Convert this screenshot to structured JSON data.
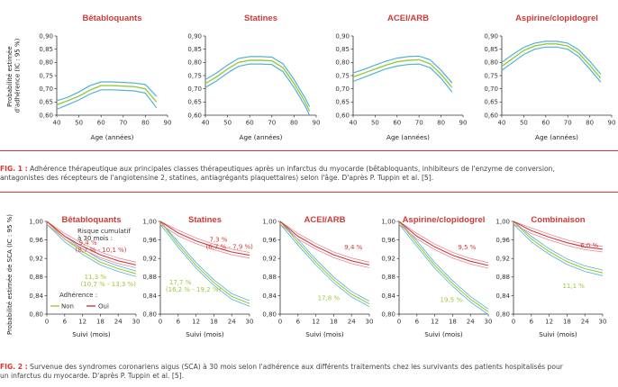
{
  "figure1": {
    "ylabel_line1": "Probabilité estimée",
    "ylabel_line2": "d'adhérence (IC : 95 %)",
    "xlabel": "Age (années)",
    "caption_label": "FIG. 1 :",
    "caption_line1": " Adhérence thérapeutique aux principales classes thérapeutiques après un infarctus du myocarde (bêtabloquants, inhibiteurs de l'enzyme de conversion,",
    "caption_line2": "antagonistes des récepteurs de l'angiotensine 2, statines, antiagrégants plaquettaires) selon l'âge. D'après P. Tuppin et al. [5]."
  },
  "figure2": {
    "ylabel": "Probabilité estimée de SCA (IC : 95 %)",
    "xlabel": "Suivi (mois)",
    "legend_title": "Adhérence :",
    "legend_non": "Non",
    "legend_oui": "Oui",
    "risk_label_line1": "Risque cumulatif",
    "risk_label_line2": "à 30 mois :",
    "caption_label": "FIG. 2 :",
    "caption_line1": " Survenue des syndromes coronariens aigus (SCA) à 30 mois selon l'adhérence aux différents traitements chez les survivants des patients hospitalisés pour",
    "caption_line2": "un infarctus du myocarde. D'après P. Tuppin et al. [5]."
  },
  "colors": {
    "accent": "#d23a36",
    "fig1_mid": "#9cc93a",
    "fig1_band": "#4fb3d6",
    "non_adherent": "#9cc93a",
    "non_adherent_band": "#4fb3d6",
    "adherent": "#d23a36",
    "adherent_band": "#e58a9a"
  },
  "chart_data": [
    {
      "type": "line",
      "title": "Bêtabloquants",
      "xlabel": "Age (années)",
      "ylabel": "Probabilité estimée d'adhérence (IC : 95 %)",
      "xlim": [
        40,
        90
      ],
      "ylim": [
        0.6,
        0.9
      ],
      "xticks": [
        "40",
        "50",
        "60",
        "70",
        "80",
        "90"
      ],
      "yticks": [
        "0,60",
        "0,65",
        "0,70",
        "0,75",
        "0,80",
        "0,85",
        "0,90"
      ],
      "x": [
        40,
        45,
        50,
        55,
        60,
        65,
        70,
        75,
        80,
        85
      ],
      "series": [
        {
          "values": [
            0.64,
            0.655,
            0.672,
            0.695,
            0.712,
            0.712,
            0.71,
            0.708,
            0.7,
            0.65
          ]
        },
        {
          "values": [
            0.655,
            0.668,
            0.688,
            0.712,
            0.726,
            0.726,
            0.724,
            0.722,
            0.716,
            0.672
          ]
        },
        {
          "values": [
            0.622,
            0.64,
            0.658,
            0.68,
            0.696,
            0.696,
            0.694,
            0.692,
            0.684,
            0.628
          ]
        }
      ]
    },
    {
      "type": "line",
      "title": "Statines",
      "xlabel": "Age (années)",
      "ylabel": "",
      "xlim": [
        40,
        90
      ],
      "ylim": [
        0.6,
        0.9
      ],
      "xticks": [
        "40",
        "50",
        "60",
        "70",
        "80",
        "90"
      ],
      "yticks": [
        "0,60",
        "0,65",
        "0,70",
        "0,75",
        "0,80",
        "0,85",
        "0,90"
      ],
      "x": [
        40,
        45,
        50,
        55,
        60,
        65,
        70,
        75,
        80,
        85,
        87
      ],
      "series": [
        {
          "values": [
            0.72,
            0.745,
            0.775,
            0.8,
            0.808,
            0.808,
            0.806,
            0.78,
            0.72,
            0.65,
            0.615
          ]
        },
        {
          "values": [
            0.735,
            0.76,
            0.79,
            0.815,
            0.822,
            0.822,
            0.82,
            0.795,
            0.735,
            0.665,
            0.632
          ]
        },
        {
          "values": [
            0.705,
            0.73,
            0.76,
            0.785,
            0.794,
            0.794,
            0.792,
            0.765,
            0.705,
            0.635,
            0.6
          ]
        }
      ]
    },
    {
      "type": "line",
      "title": "ACEI/ARB",
      "xlabel": "Age (années)",
      "ylabel": "",
      "xlim": [
        40,
        90
      ],
      "ylim": [
        0.6,
        0.9
      ],
      "xticks": [
        "40",
        "50",
        "60",
        "70",
        "80",
        "90"
      ],
      "yticks": [
        "0,60",
        "0,65",
        "0,70",
        "0,75",
        "0,80",
        "0,85",
        "0,90"
      ],
      "x": [
        40,
        45,
        50,
        55,
        60,
        65,
        70,
        75,
        80,
        85
      ],
      "series": [
        {
          "values": [
            0.745,
            0.76,
            0.775,
            0.79,
            0.802,
            0.808,
            0.81,
            0.795,
            0.755,
            0.705
          ]
        },
        {
          "values": [
            0.76,
            0.774,
            0.79,
            0.805,
            0.816,
            0.822,
            0.824,
            0.81,
            0.77,
            0.722
          ]
        },
        {
          "values": [
            0.728,
            0.744,
            0.76,
            0.776,
            0.786,
            0.792,
            0.794,
            0.78,
            0.74,
            0.688
          ]
        }
      ]
    },
    {
      "type": "line",
      "title": "Aspirine/clopidogrel",
      "xlabel": "Age (années)",
      "ylabel": "",
      "xlim": [
        40,
        90
      ],
      "ylim": [
        0.6,
        0.9
      ],
      "xticks": [
        "40",
        "50",
        "60",
        "70",
        "80",
        "90"
      ],
      "yticks": [
        "0,60",
        "0,65",
        "0,70",
        "0,75",
        "0,80",
        "0,85",
        "0,90"
      ],
      "x": [
        40,
        45,
        50,
        55,
        60,
        65,
        70,
        75,
        80,
        85
      ],
      "series": [
        {
          "values": [
            0.785,
            0.815,
            0.845,
            0.862,
            0.87,
            0.87,
            0.862,
            0.835,
            0.79,
            0.74
          ]
        },
        {
          "values": [
            0.8,
            0.83,
            0.857,
            0.873,
            0.88,
            0.88,
            0.873,
            0.848,
            0.805,
            0.755
          ]
        },
        {
          "values": [
            0.77,
            0.8,
            0.83,
            0.85,
            0.858,
            0.858,
            0.85,
            0.822,
            0.775,
            0.725
          ]
        }
      ]
    },
    {
      "type": "line",
      "title": "Bêtabloquants",
      "xlabel": "Suivi (mois)",
      "ylabel": "Probabilité estimée de SCA (IC : 95 %)",
      "xlim": [
        0,
        30
      ],
      "ylim": [
        0.8,
        1.0
      ],
      "xticks": [
        "0",
        "6",
        "12",
        "18",
        "24",
        "30"
      ],
      "yticks": [
        "0,80",
        "0,84",
        "0,88",
        "0,92",
        "0,96",
        "1,00"
      ],
      "x": [
        0,
        6,
        12,
        18,
        24,
        30
      ],
      "series": [
        {
          "name": "Oui",
          "values": [
            1.0,
            0.968,
            0.946,
            0.928,
            0.915,
            0.906
          ],
          "annotation_line1": "9,4 %",
          "annotation_line2": "(8,7 % - 10,1 %)"
        },
        {
          "name": "Non",
          "values": [
            1.0,
            0.962,
            0.935,
            0.912,
            0.898,
            0.887
          ],
          "annotation_line1": "11,3 %",
          "annotation_line2": "(10,7 % - 13,3 %)"
        }
      ]
    },
    {
      "type": "line",
      "title": "Statines",
      "xlabel": "Suivi (mois)",
      "ylabel": "",
      "xlim": [
        0,
        30
      ],
      "ylim": [
        0.8,
        1.0
      ],
      "xticks": [
        "0",
        "6",
        "12",
        "18",
        "24",
        "30"
      ],
      "yticks": [
        "0,80",
        "0,84",
        "0,88",
        "0,92",
        "0,96",
        "1,00"
      ],
      "x": [
        0,
        6,
        12,
        18,
        24,
        30
      ],
      "series": [
        {
          "name": "Oui",
          "values": [
            1.0,
            0.975,
            0.958,
            0.945,
            0.934,
            0.927
          ],
          "annotation_line1": "7,3 %",
          "annotation_line2": "(6,7 % - 7,9 %)"
        },
        {
          "name": "Non",
          "values": [
            1.0,
            0.95,
            0.905,
            0.868,
            0.838,
            0.823
          ],
          "annotation_line1": "17,7 %",
          "annotation_line2": "(16,2 % - 19,2 %)"
        }
      ]
    },
    {
      "type": "line",
      "title": "ACEI/ARB",
      "xlabel": "Suivi (mois)",
      "ylabel": "",
      "xlim": [
        0,
        30
      ],
      "ylim": [
        0.8,
        1.0
      ],
      "xticks": [
        "0",
        "6",
        "12",
        "18",
        "24",
        "30"
      ],
      "yticks": [
        "0,80",
        "0,84",
        "0,88",
        "0,92",
        "0,96",
        "1,00"
      ],
      "x": [
        0,
        6,
        12,
        18,
        24,
        30
      ],
      "series": [
        {
          "name": "Oui",
          "values": [
            1.0,
            0.968,
            0.946,
            0.928,
            0.915,
            0.906
          ],
          "annotation_line1": "9,4 %"
        },
        {
          "name": "Non",
          "values": [
            1.0,
            0.955,
            0.912,
            0.874,
            0.843,
            0.822
          ],
          "annotation_line1": "17,8 %"
        }
      ]
    },
    {
      "type": "line",
      "title": "Aspirine/clopidogrel",
      "xlabel": "Suivi (mois)",
      "ylabel": "",
      "xlim": [
        0,
        30
      ],
      "ylim": [
        0.8,
        1.0
      ],
      "xticks": [
        "0",
        "6",
        "12",
        "18",
        "24",
        "30"
      ],
      "yticks": [
        "0,80",
        "0,84",
        "0,88",
        "0,92",
        "0,96",
        "1,00"
      ],
      "x": [
        0,
        6,
        12,
        18,
        24,
        30
      ],
      "series": [
        {
          "name": "Oui",
          "values": [
            1.0,
            0.968,
            0.945,
            0.927,
            0.914,
            0.905
          ],
          "annotation_line1": "9,5 %"
        },
        {
          "name": "Non",
          "values": [
            1.0,
            0.952,
            0.905,
            0.866,
            0.832,
            0.805
          ],
          "annotation_line1": "19,5 %"
        }
      ]
    },
    {
      "type": "line",
      "title": "Combinaison",
      "xlabel": "Suivi (mois)",
      "ylabel": "",
      "xlim": [
        0,
        30
      ],
      "ylim": [
        0.8,
        1.0
      ],
      "xticks": [
        "0",
        "6",
        "12",
        "18",
        "24",
        "30"
      ],
      "yticks": [
        "0,80",
        "0,84",
        "0,88",
        "0,92",
        "0,96",
        "1,00"
      ],
      "x": [
        0,
        6,
        12,
        18,
        24,
        30
      ],
      "series": [
        {
          "name": "Oui",
          "values": [
            1.0,
            0.98,
            0.966,
            0.954,
            0.945,
            0.94
          ],
          "annotation_line1": "6,0 %"
        },
        {
          "name": "Non",
          "values": [
            1.0,
            0.962,
            0.935,
            0.913,
            0.898,
            0.889
          ],
          "annotation_line1": "11,1 %"
        }
      ]
    }
  ]
}
